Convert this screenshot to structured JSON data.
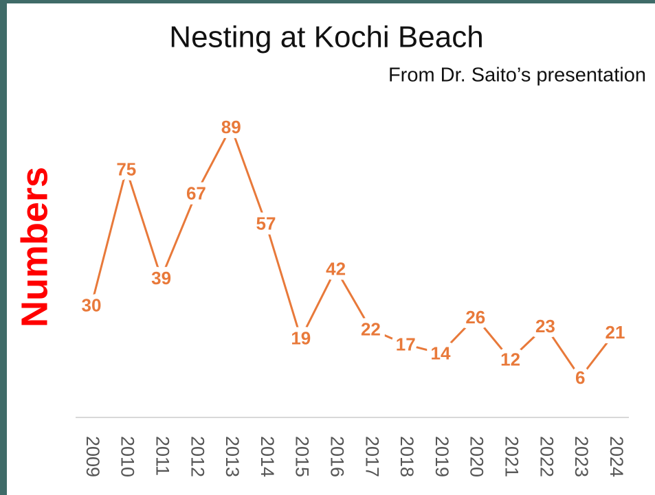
{
  "chart_data": {
    "type": "line",
    "title": "Nesting at Kochi Beach",
    "subtitle": "From Dr. Saito’s presentation",
    "y_label": "Numbers",
    "categories": [
      "2009",
      "2010",
      "2011",
      "2012",
      "2013",
      "2014",
      "2015",
      "2016",
      "2017",
      "2018",
      "2019",
      "2020",
      "2021",
      "2022",
      "2023",
      "2024"
    ],
    "values": [
      30,
      75,
      39,
      67,
      89,
      57,
      19,
      42,
      22,
      17,
      14,
      26,
      12,
      23,
      6,
      21
    ],
    "color": "#e8793a"
  }
}
